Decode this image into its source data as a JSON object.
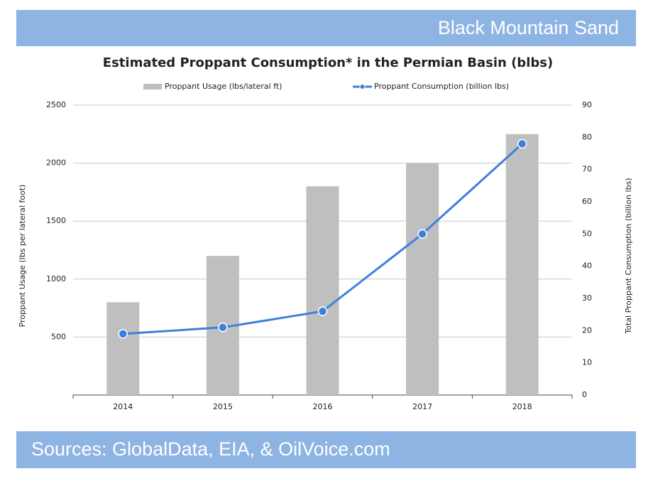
{
  "header": {
    "title": "Black Mountain Sand"
  },
  "footer": {
    "text": "Sources: GlobalData, EIA, & OilVoice.com"
  },
  "chart_data": {
    "type": "bar-line",
    "title": "Estimated Proppant Consumption* in the Permian Basin (blbs)",
    "categories": [
      "2014",
      "2015",
      "2016",
      "2017",
      "2018"
    ],
    "series": [
      {
        "name": "Proppant Usage (lbs/lateral ft)",
        "type": "bar",
        "color": "#bfbfbf",
        "values": [
          800,
          1200,
          1800,
          2000,
          2250
        ]
      },
      {
        "name": "Proppant Consumption (billion lbs)",
        "type": "line",
        "axis": "y2",
        "color": "#3f7fdc",
        "values": [
          19,
          21,
          26,
          50,
          78
        ]
      }
    ],
    "ylabel": "Proppant Usage (lbs per lateral foot)",
    "y2label": "Total Proppant Consumption (billion lbs)",
    "ylim": [
      0,
      2500
    ],
    "yticks": [
      500,
      1000,
      1500,
      2000,
      2500
    ],
    "y2lim": [
      0,
      90
    ],
    "y2ticks": [
      0,
      10,
      20,
      30,
      40,
      50,
      60,
      70,
      80,
      90
    ],
    "grid": true,
    "legend": "top"
  }
}
